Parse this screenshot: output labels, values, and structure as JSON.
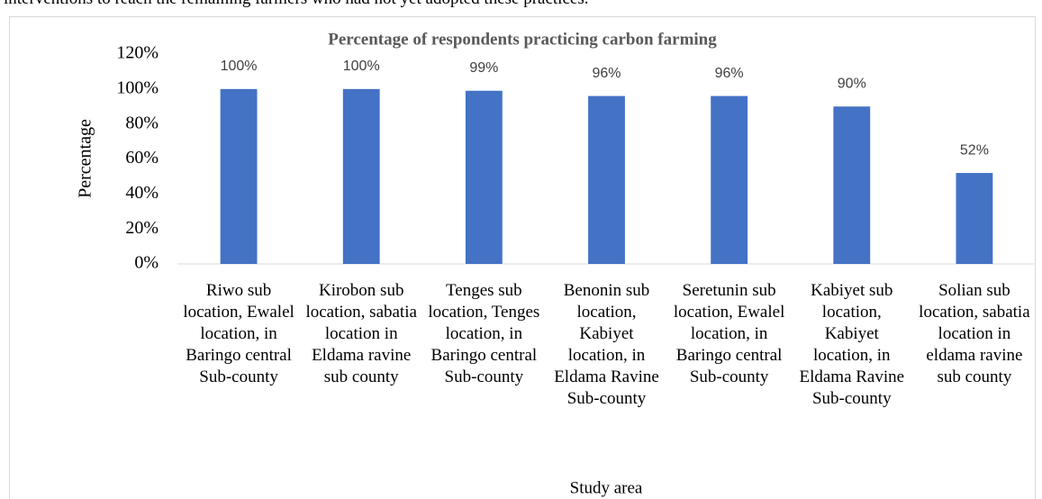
{
  "page_text": "interventions to reach the remaining farmers who had not yet adopted these practices.",
  "chart_data": {
    "type": "bar",
    "title": "Percentage of respondents practicing carbon farming",
    "x_label": "Study area",
    "y_label": "Percentage",
    "categories": [
      "Riwo sub location, Ewalel location, in Baringo central Sub-county",
      "Kirobon sub location, sabatia location in Eldama ravine sub county",
      "Tenges sub location, Tenges location, in Baringo central Sub-county",
      "Benonin sub location, Kabiyet location, in Eldama Ravine Sub-county",
      "Seretunin sub location, Ewalel location, in Baringo central Sub-county",
      "Kabiyet sub location, Kabiyet location, in Eldama Ravine Sub-county",
      "Solian sub location, sabatia location in eldama ravine sub county"
    ],
    "values": [
      100,
      100,
      99,
      96,
      96,
      90,
      52
    ],
    "value_labels": [
      "100%",
      "100%",
      "99%",
      "96%",
      "96%",
      "90%",
      "52%"
    ],
    "color": "#4472c4",
    "ylim": [
      0,
      120
    ],
    "yticks": [
      {
        "value": 0,
        "label": "0%"
      },
      {
        "value": 20,
        "label": "20%"
      },
      {
        "value": 40,
        "label": "40%"
      },
      {
        "value": 60,
        "label": "60%"
      },
      {
        "value": 80,
        "label": "80%"
      },
      {
        "value": 100,
        "label": "100%"
      },
      {
        "value": 120,
        "label": "120%"
      }
    ],
    "grid": false
  }
}
